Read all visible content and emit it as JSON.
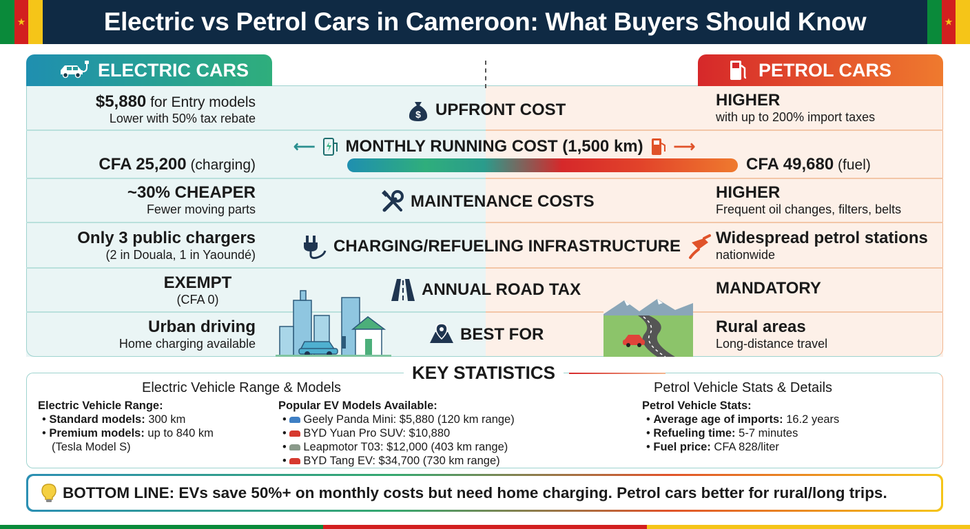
{
  "title": "Electric vs Petrol Cars in Cameroon: What Buyers Should Know",
  "colors": {
    "header_bg": "#0f2a44",
    "electric": "#1f8fb0",
    "petrol": "#e2432a",
    "flag_green": "#0a8a3a",
    "flag_red": "#d21f1f",
    "flag_yellow": "#f5c518"
  },
  "tabs": {
    "electric": "ELECTRIC CARS",
    "petrol": "PETROL CARS"
  },
  "rows": [
    {
      "name": "upfront",
      "icon": "money-bag-icon",
      "label": "UPFRONT COST",
      "ev_main": "$5,880",
      "ev_main_suffix": " for Entry models",
      "ev_sub": "Lower with 50% tax rebate",
      "petrol_main": "HIGHER",
      "petrol_sub": "with up to 200% import taxes"
    },
    {
      "name": "running",
      "icon": "charger-icon",
      "icon2": "fuel-pump-icon",
      "label": "MONTHLY RUNNING COST (1,500 km)",
      "ev_main": "CFA 25,200",
      "ev_main_suffix": " (charging)",
      "petrol_main": "CFA 49,680",
      "petrol_main_suffix": " (fuel)"
    },
    {
      "name": "maintenance",
      "icon": "tools-icon",
      "label": "MAINTENANCE COSTS",
      "ev_main": "~30% CHEAPER",
      "ev_sub": "Fewer moving parts",
      "petrol_main": "HIGHER",
      "petrol_sub": "Frequent oil changes, filters, belts"
    },
    {
      "name": "infrastructure",
      "icon": "plug-icon",
      "icon2": "fuel-nozzle-icon",
      "label": "CHARGING/REFUELING INFRASTRUCTURE",
      "ev_main": "Only 3 public chargers",
      "ev_sub": "(2 in Douala, 1 in Yaoundé)",
      "petrol_main": "Widespread petrol stations",
      "petrol_sub": "nationwide"
    },
    {
      "name": "roadtax",
      "icon": "road-icon",
      "label": "ANNUAL ROAD TAX",
      "ev_main": "EXEMPT",
      "ev_sub": "(CFA 0)",
      "petrol_main": "MANDATORY"
    },
    {
      "name": "bestfor",
      "icon": "map-pin-icon",
      "label": "BEST FOR",
      "ev_main": "Urban driving",
      "ev_sub": "Home charging available",
      "petrol_main": "Rural areas",
      "petrol_sub": "Long-distance travel"
    }
  ],
  "stats": {
    "title": "KEY STATISTICS",
    "ev_heading": "Electric Vehicle Range & Models",
    "petrol_heading": "Petrol Vehicle Stats & Details",
    "ev_range_label": "Electric Vehicle Range:",
    "ev_range": [
      {
        "bold": "Standard models:",
        "text": " 300 km"
      },
      {
        "bold": "Premium models:",
        "text": " up to 840 km"
      }
    ],
    "ev_range_note": "(Tesla Model S)",
    "models_label": "Popular EV Models Available:",
    "models": [
      {
        "text": "Geely Panda Mini: $5,880 (120 km range)",
        "color": "#3f7fc4"
      },
      {
        "text": "BYD Yuan Pro SUV: $10,880",
        "color": "#d63a2f"
      },
      {
        "text": "Leapmotor T03: $12,000 (403 km range)",
        "color": "#8a9a8a"
      },
      {
        "text": "BYD Tang EV: $34,700 (730 km range)",
        "color": "#d63a2f"
      }
    ],
    "petrol_label": "Petrol Vehicle Stats:",
    "petrol_items": [
      {
        "bold": "Average age of imports:",
        "text": " 16.2 years"
      },
      {
        "bold": "Refueling time:",
        "text": " 5-7 minutes"
      },
      {
        "bold": "Fuel price:",
        "text": " CFA 828/liter"
      }
    ]
  },
  "bottom_line": "BOTTOM LINE: EVs save 50%+ on monthly costs but need home charging. Petrol cars better for rural/long trips."
}
